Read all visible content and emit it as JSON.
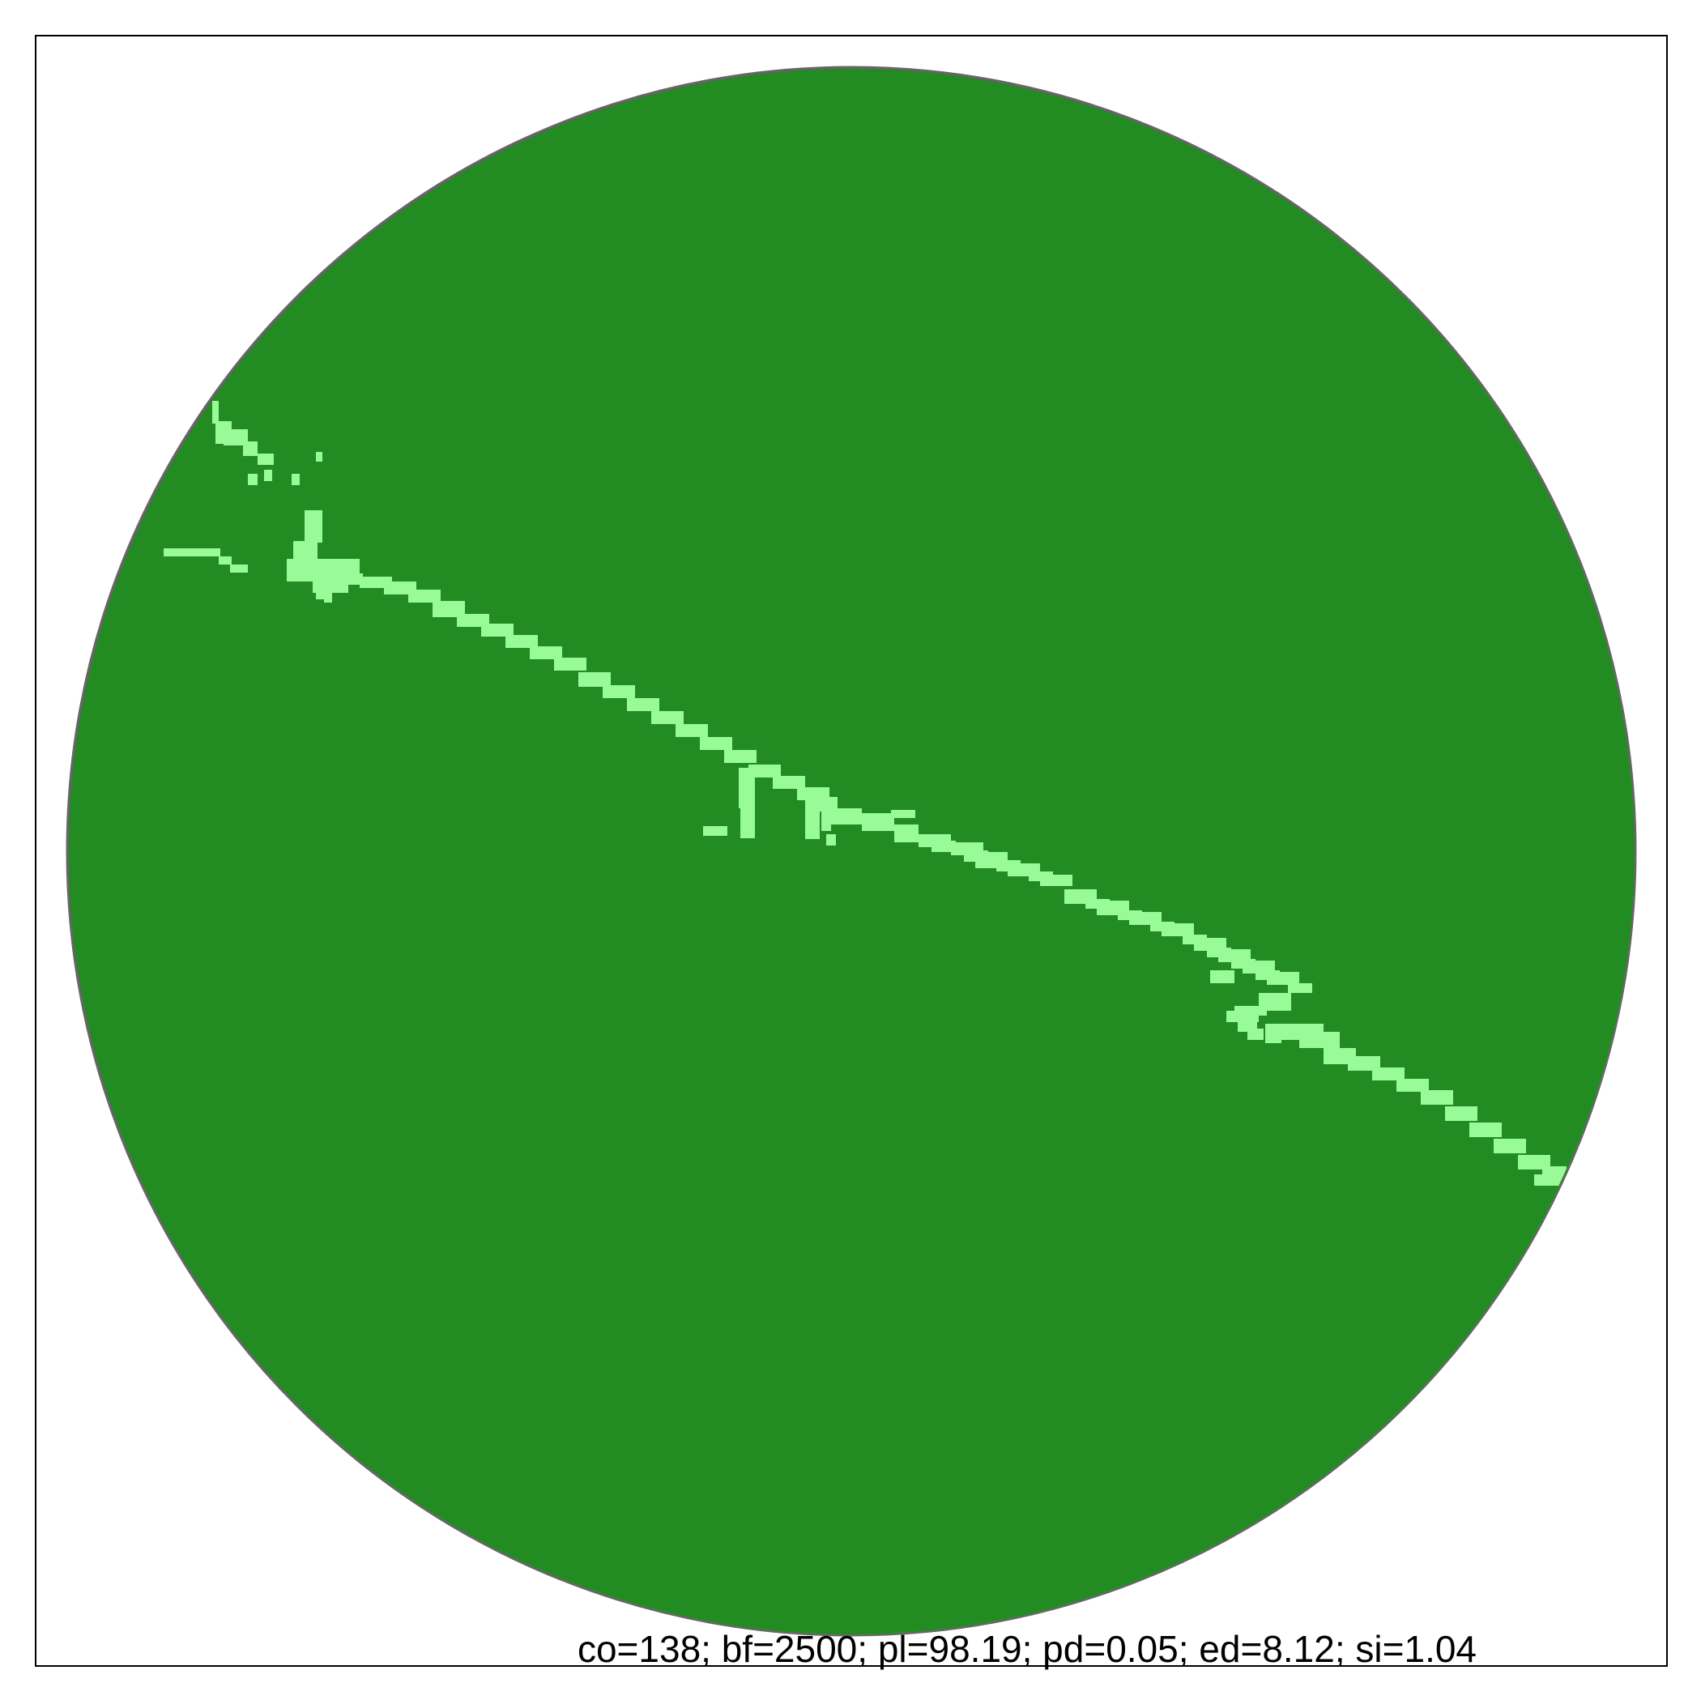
{
  "figure": {
    "caption": "co=138; bf=2500; pl=98.19; pd=0.05; ed=8.12; si=1.04"
  },
  "colors": {
    "background": "#ffffff",
    "frame": "#000000",
    "disc_fill": "#228B22",
    "disc_outline": "#666666",
    "gap_fill": "#98FB98"
  },
  "legend": []
}
